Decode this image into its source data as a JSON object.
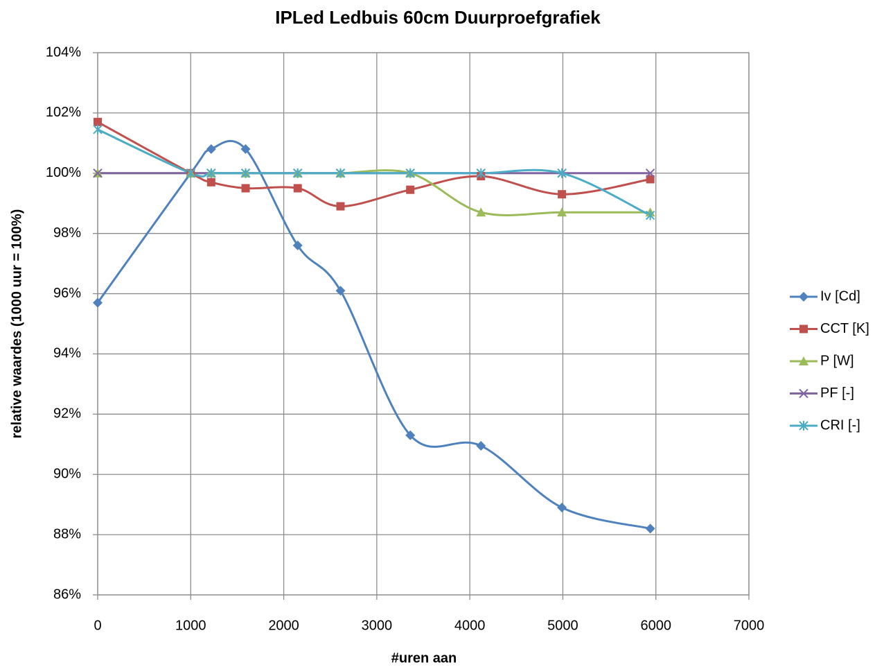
{
  "chart_data": {
    "type": "line",
    "title": "IPLed Ledbuis 60cm Duurproefgrafiek",
    "x_label": "#uren aan",
    "y_label": "relative waardes (1000 uur = 100%)",
    "x": [
      0,
      1000,
      1220,
      1590,
      2150,
      2610,
      3360,
      4120,
      4990,
      5940
    ],
    "series": [
      {
        "name": "Iv [Cd]",
        "color": "#4f81bd",
        "marker": "diamond",
        "values": [
          95.7,
          100,
          100.8,
          100.8,
          97.6,
          96.1,
          91.3,
          90.95,
          88.9,
          88.2
        ]
      },
      {
        "name": "CCT [K]",
        "color": "#c0504d",
        "marker": "square",
        "values": [
          101.7,
          100,
          99.7,
          99.5,
          99.5,
          98.9,
          99.45,
          99.9,
          99.3,
          99.8
        ]
      },
      {
        "name": "P [W]",
        "color": "#9bbb59",
        "marker": "triangle",
        "values": [
          100,
          100,
          100,
          100,
          100,
          100,
          100,
          98.7,
          98.7,
          98.7
        ]
      },
      {
        "name": "PF [-]",
        "color": "#8064a2",
        "marker": "x",
        "values": [
          100,
          100,
          100,
          100,
          100,
          100,
          100,
          100,
          100,
          100
        ]
      },
      {
        "name": "CRI [-]",
        "color": "#4bacc6",
        "marker": "star",
        "values": [
          101.45,
          100,
          100,
          100,
          100,
          100,
          100,
          100,
          100,
          98.6
        ]
      }
    ],
    "xlim": [
      0,
      7000
    ],
    "xticks": [
      0,
      1000,
      2000,
      3000,
      4000,
      5000,
      6000,
      7000
    ],
    "ylim": [
      86,
      104
    ],
    "yticks": [
      {
        "value": 86,
        "label": "86%"
      },
      {
        "value": 88,
        "label": "88%"
      },
      {
        "value": 90,
        "label": "90%"
      },
      {
        "value": 92,
        "label": "92%"
      },
      {
        "value": 94,
        "label": "94%"
      },
      {
        "value": 96,
        "label": "96%"
      },
      {
        "value": 98,
        "label": "98%"
      },
      {
        "value": 100,
        "label": "100%"
      },
      {
        "value": 102,
        "label": "102%"
      },
      {
        "value": 104,
        "label": "104%"
      }
    ],
    "grid": true,
    "smooth": true,
    "legend": "right"
  }
}
